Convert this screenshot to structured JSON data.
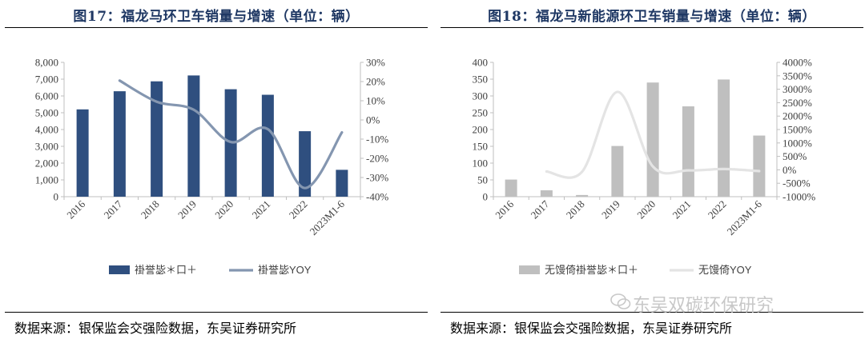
{
  "charts": [
    {
      "title": "图17：福龙马环卫车销量与增速（单位：辆）",
      "source": "数据来源：银保监会交强险数据，东吴证券研究所",
      "chart_data": {
        "type": "bar+line",
        "categories": [
          "2016",
          "2017",
          "2018",
          "2019",
          "2020",
          "2021",
          "2022",
          "2023M1-6"
        ],
        "series": [
          {
            "name": "褂誉毖＊口＋",
            "type": "bar",
            "axis": "left",
            "color": "#2f4f7f",
            "values": [
              5200,
              6280,
              6870,
              7220,
              6400,
              6070,
              3900,
              1600
            ]
          },
          {
            "name": "褂誉毖YOY",
            "type": "line",
            "axis": "right",
            "color": "#8496b0",
            "values": [
              null,
              20.5,
              9.5,
              5.3,
              -11.5,
              -4.8,
              -35.5,
              -6.5
            ]
          }
        ],
        "y_left": {
          "min": 0,
          "max": 8000,
          "ticks": [
            0,
            1000,
            2000,
            3000,
            4000,
            5000,
            6000,
            7000,
            8000
          ],
          "tick_labels": [
            "0",
            "1,000",
            "2,000",
            "3,000",
            "4,000",
            "5,000",
            "6,000",
            "7,000",
            "8,000"
          ]
        },
        "y_right": {
          "min": -40,
          "max": 30,
          "ticks": [
            -40,
            -30,
            -20,
            -10,
            0,
            10,
            20,
            30
          ],
          "tick_labels": [
            "-40%",
            "-30%",
            "-20%",
            "-10%",
            "0%",
            "10%",
            "20%",
            "30%"
          ]
        },
        "legend_position": "bottom",
        "grid": false
      }
    },
    {
      "title": "图18：福龙马新能源环卫车销量与增速（单位：辆）",
      "source": "数据来源：银保监会交强险数据，东吴证券研究所",
      "chart_data": {
        "type": "bar+line",
        "categories": [
          "2016",
          "2017",
          "2018",
          "2019",
          "2020",
          "2021",
          "2022",
          "2023M1-6"
        ],
        "series": [
          {
            "name": "无馒倚褂誉毖＊口＋",
            "type": "bar",
            "axis": "left",
            "color": "#bfbfbf",
            "values": [
              51,
              19,
              5,
              151,
              340,
              269,
              349,
              182
            ]
          },
          {
            "name": "无馒倚YOY",
            "type": "line",
            "axis": "right",
            "color": "#e4e4e4",
            "values": [
              null,
              -63,
              -74,
              2900,
              125,
              -21,
              30,
              -48
            ]
          }
        ],
        "y_left": {
          "min": 0,
          "max": 400,
          "ticks": [
            0,
            50,
            100,
            150,
            200,
            250,
            300,
            350,
            400
          ],
          "tick_labels": [
            "0",
            "50",
            "100",
            "150",
            "200",
            "250",
            "300",
            "350",
            "400"
          ]
        },
        "y_right": {
          "min": -1000,
          "max": 4000,
          "ticks": [
            -1000,
            -500,
            0,
            500,
            1000,
            1500,
            2000,
            2500,
            3000,
            3500,
            4000
          ],
          "tick_labels": [
            "-1000%",
            "-500%",
            "0%",
            "500%",
            "1000%",
            "1500%",
            "2000%",
            "2500%",
            "3000%",
            "3500%",
            "4000%"
          ]
        },
        "legend_position": "bottom",
        "grid": false
      }
    }
  ],
  "watermark": "东吴双碳环保研究"
}
